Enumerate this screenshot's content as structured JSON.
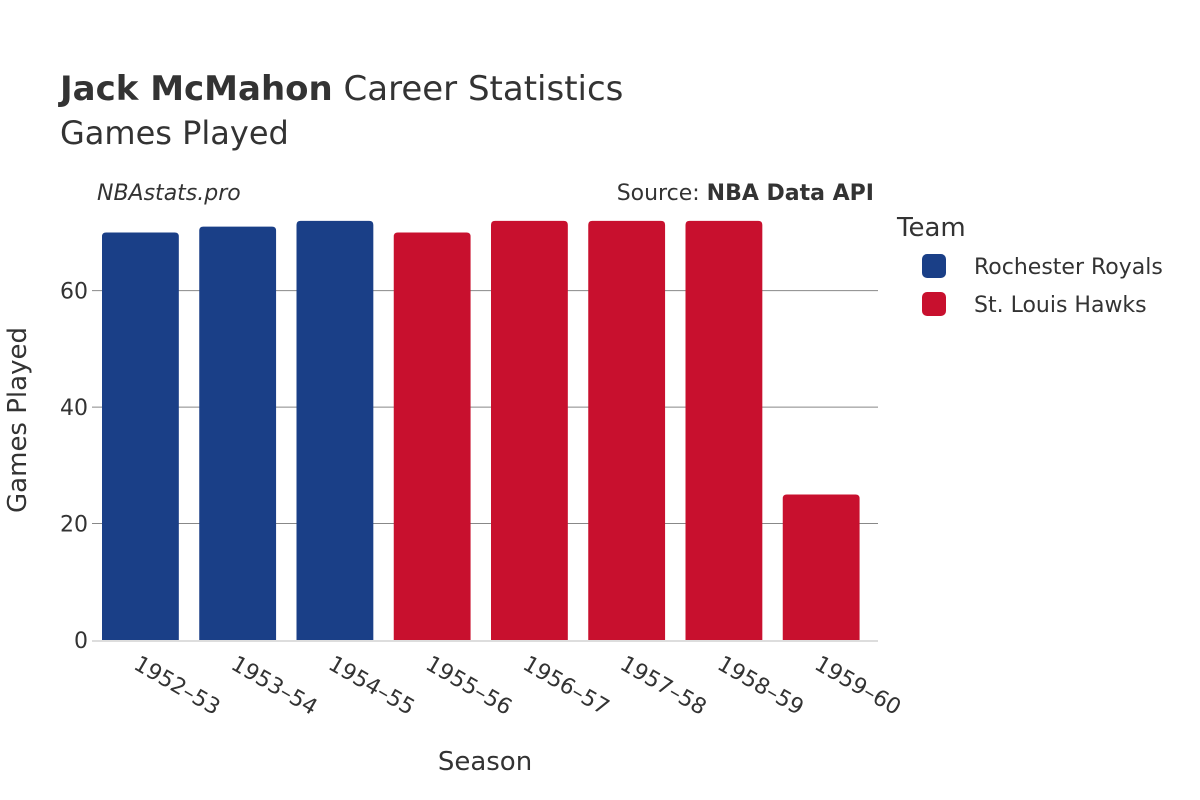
{
  "header": {
    "player_name": "Jack McMahon",
    "title_rest": " Career Statistics",
    "subtitle": "Games Played",
    "watermark": "NBAstats.pro",
    "source_prefix": "Source: ",
    "source_name": "NBA Data API"
  },
  "legend": {
    "title": "Team",
    "items": [
      {
        "label": "Rochester Royals",
        "color": "#1a3f87"
      },
      {
        "label": "St. Louis Hawks",
        "color": "#c8102e"
      }
    ]
  },
  "chart_data": {
    "type": "bar",
    "title": "Jack McMahon Career Statistics",
    "subtitle": "Games Played",
    "xlabel": "Season",
    "ylabel": "Games Played",
    "ylim": [
      0,
      73
    ],
    "yticks": [
      0,
      20,
      40,
      60
    ],
    "grid": true,
    "legend_position": "right",
    "categories": [
      "1952–53",
      "1953–54",
      "1954–55",
      "1955–56",
      "1956–57",
      "1957–58",
      "1958–59",
      "1959–60"
    ],
    "values": [
      70,
      71,
      72,
      70,
      72,
      72,
      72,
      25
    ],
    "teams": [
      "Rochester Royals",
      "Rochester Royals",
      "Rochester Royals",
      "St. Louis Hawks",
      "St. Louis Hawks",
      "St. Louis Hawks",
      "St. Louis Hawks",
      "St. Louis Hawks"
    ],
    "colors": {
      "Rochester Royals": "#1a3f87",
      "St. Louis Hawks": "#c8102e"
    }
  }
}
